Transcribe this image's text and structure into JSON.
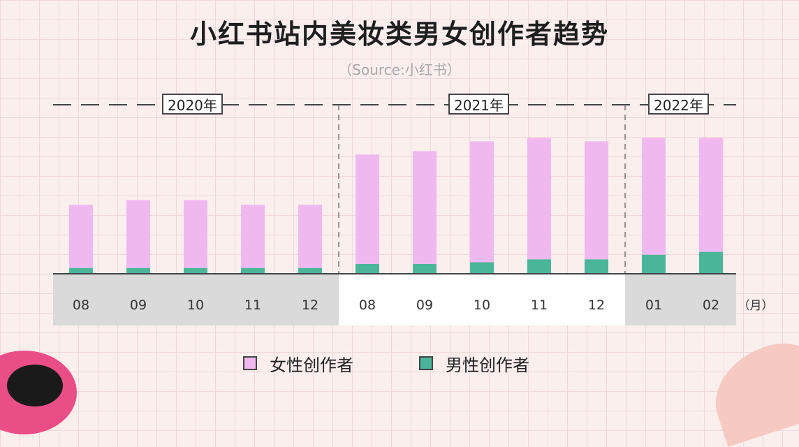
{
  "chart_data": {
    "type": "bar",
    "stacked": true,
    "title": "小红书站内美妆类男女创作者趋势",
    "subtitle": "（Source:小红书）",
    "year_groups": [
      {
        "label": "2020年",
        "count": 5
      },
      {
        "label": "2021年",
        "count": 5
      },
      {
        "label": "2022年",
        "count": 2
      }
    ],
    "categories": [
      "08",
      "09",
      "10",
      "11",
      "12",
      "08",
      "09",
      "10",
      "11",
      "12",
      "01",
      "02"
    ],
    "x_unit": "（月）",
    "series": [
      {
        "name": "男性创作者",
        "color": "#4bb59a",
        "values": [
          1.0,
          1.0,
          1.0,
          1.0,
          1.0,
          1.7,
          1.7,
          2.0,
          2.5,
          2.5,
          3.3,
          3.8
        ]
      },
      {
        "name": "女性创作者",
        "color": "#efb9ef",
        "values": [
          11.0,
          11.8,
          11.8,
          11.0,
          11.0,
          19.0,
          19.6,
          21.0,
          21.1,
          20.5,
          20.3,
          19.8
        ]
      }
    ],
    "legend_position": "bottom-center",
    "grid": false,
    "colors": {
      "female": "#efb9ef",
      "male": "#4bb59a",
      "band_gray": "#dadada",
      "band_white": "#ffffff",
      "axis": "#444444"
    }
  }
}
